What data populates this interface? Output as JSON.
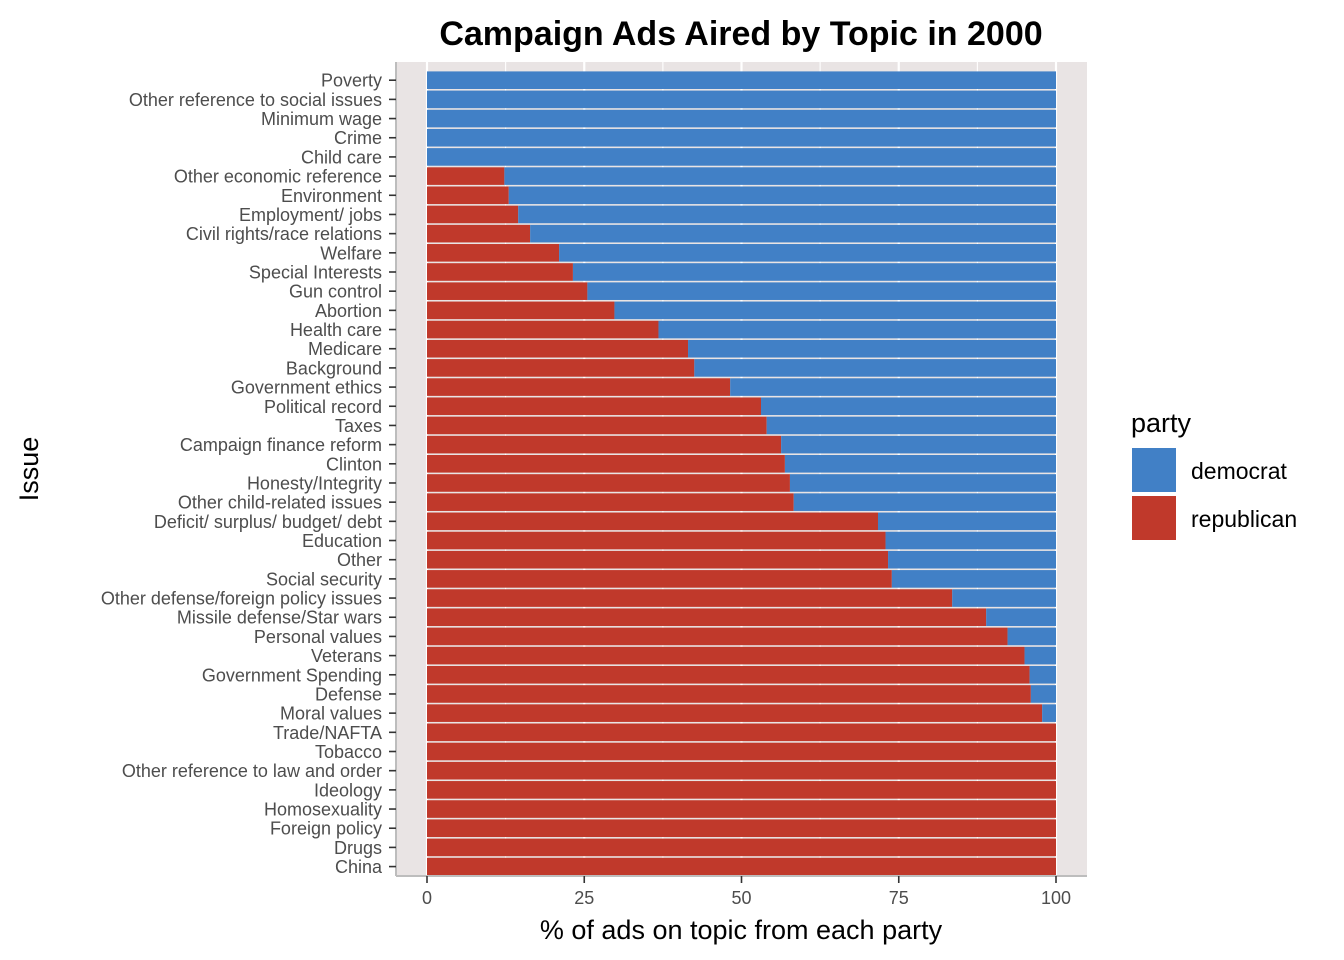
{
  "chart_data": {
    "type": "bar",
    "orientation": "horizontal",
    "stacked": true,
    "title": "Campaign Ads Aired by Topic in 2000",
    "xlabel": "% of ads on topic from each party",
    "ylabel": "Issue",
    "xlim": [
      0,
      100
    ],
    "xticks": [
      0,
      25,
      50,
      75,
      100
    ],
    "xtick_labels": [
      "0",
      "25",
      "50",
      "75",
      "100"
    ],
    "legend": {
      "title": "party",
      "position": "right",
      "entries": [
        {
          "name": "democrat",
          "color": "#4180c6"
        },
        {
          "name": "republican",
          "color": "#c0392b"
        }
      ]
    },
    "categories": [
      "Poverty",
      "Other reference to social issues",
      "Minimum wage",
      "Crime",
      "Child care",
      "Other economic reference",
      "Environment",
      "Employment/ jobs",
      "Civil rights/race relations",
      "Welfare",
      "Special Interests",
      "Gun control",
      "Abortion",
      "Health care",
      "Medicare",
      "Background",
      "Government ethics",
      "Political record",
      "Taxes",
      "Campaign finance reform",
      "Clinton",
      "Honesty/Integrity",
      "Other child-related issues",
      "Deficit/ surplus/ budget/ debt",
      "Education",
      "Other",
      "Social security",
      "Other defense/foreign policy issues",
      "Missile defense/Star wars",
      "Personal values",
      "Veterans",
      "Government Spending",
      "Defense",
      "Moral values",
      "Trade/NAFTA",
      "Tobacco",
      "Other reference to law and order",
      "Ideology",
      "Homosexuality",
      "Foreign policy",
      "Drugs",
      "China"
    ],
    "series": [
      {
        "name": "republican",
        "values": [
          0,
          0,
          0,
          0,
          0,
          12.3,
          13,
          14.5,
          16.4,
          21,
          23.2,
          25.5,
          29.8,
          36.8,
          41.5,
          42.5,
          48.2,
          53.1,
          54,
          56.3,
          56.9,
          57.7,
          58.3,
          71.7,
          72.9,
          73.3,
          73.9,
          83.5,
          88.9,
          92.3,
          95,
          95.8,
          96,
          97.8,
          100,
          100,
          100,
          100,
          100,
          100,
          100,
          100
        ]
      },
      {
        "name": "democrat",
        "values": [
          100,
          100,
          100,
          100,
          100,
          87.7,
          87,
          85.5,
          83.6,
          79,
          76.8,
          74.5,
          70.2,
          63.2,
          58.5,
          57.5,
          51.8,
          46.9,
          46,
          43.7,
          43.1,
          42.3,
          41.7,
          28.3,
          27.1,
          26.7,
          26.1,
          16.5,
          11.1,
          7.7,
          5,
          4.2,
          4,
          2.2,
          0,
          0,
          0,
          0,
          0,
          0,
          0,
          0
        ]
      }
    ]
  }
}
